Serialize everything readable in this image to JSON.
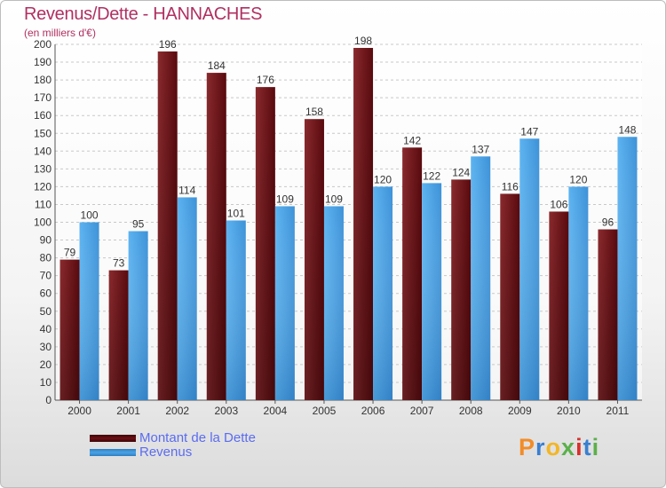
{
  "title": "Revenus/Dette - HANNACHES",
  "subtitle": "(en milliers d'€)",
  "brand": "Proxiti",
  "chart_data": {
    "type": "bar",
    "categories": [
      "2000",
      "2001",
      "2002",
      "2003",
      "2004",
      "2005",
      "2006",
      "2007",
      "2008",
      "2009",
      "2010",
      "2011"
    ],
    "series": [
      {
        "name": "Montant de la Dette",
        "values": [
          79,
          73,
          196,
          184,
          176,
          158,
          198,
          142,
          124,
          116,
          106,
          96
        ],
        "color": "#6e0f14"
      },
      {
        "name": "Revenus",
        "values": [
          100,
          95,
          114,
          101,
          109,
          109,
          120,
          122,
          137,
          147,
          120,
          148
        ],
        "color": "#4aa3e6"
      }
    ],
    "ylim": [
      0,
      200
    ],
    "ytick_step": 10,
    "grid": true,
    "legend": "bottom-left"
  },
  "legend": [
    {
      "label": "Montant de la Dette",
      "color": "#6e0f14"
    },
    {
      "label": "Revenus",
      "color": "#4aa3e6"
    }
  ],
  "logo_colors": [
    "#f28c28",
    "#3a7fd0",
    "#f2b628",
    "#5bb04a",
    "#d9302b",
    "#3a7fd0",
    "#5bb04a"
  ]
}
